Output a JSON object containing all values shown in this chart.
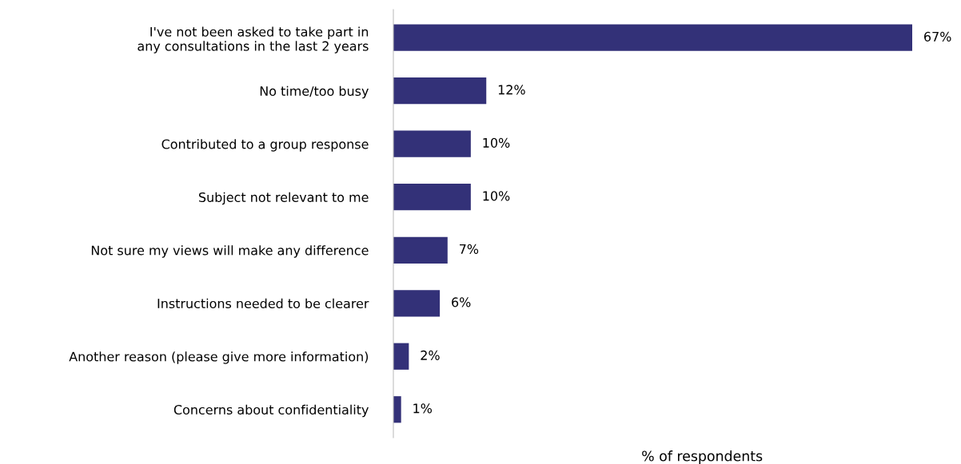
{
  "chart_data": {
    "type": "bar",
    "orientation": "horizontal",
    "xlabel": "% of respondents",
    "color": "#333178",
    "categories": [
      "I've not been asked to take part in\nany consultations in the last 2 years",
      "No time/too busy",
      "Contributed to a group response",
      "Subject not relevant to me",
      "Not sure my views will make any difference",
      "Instructions needed to be clearer",
      "Another reason (please give more information)",
      "Concerns about confidentiality"
    ],
    "values": [
      67,
      12,
      10,
      10,
      7,
      6,
      2,
      1
    ],
    "value_labels": [
      "67%",
      "12%",
      "10%",
      "10%",
      "7%",
      "6%",
      "2%",
      "1%"
    ]
  }
}
